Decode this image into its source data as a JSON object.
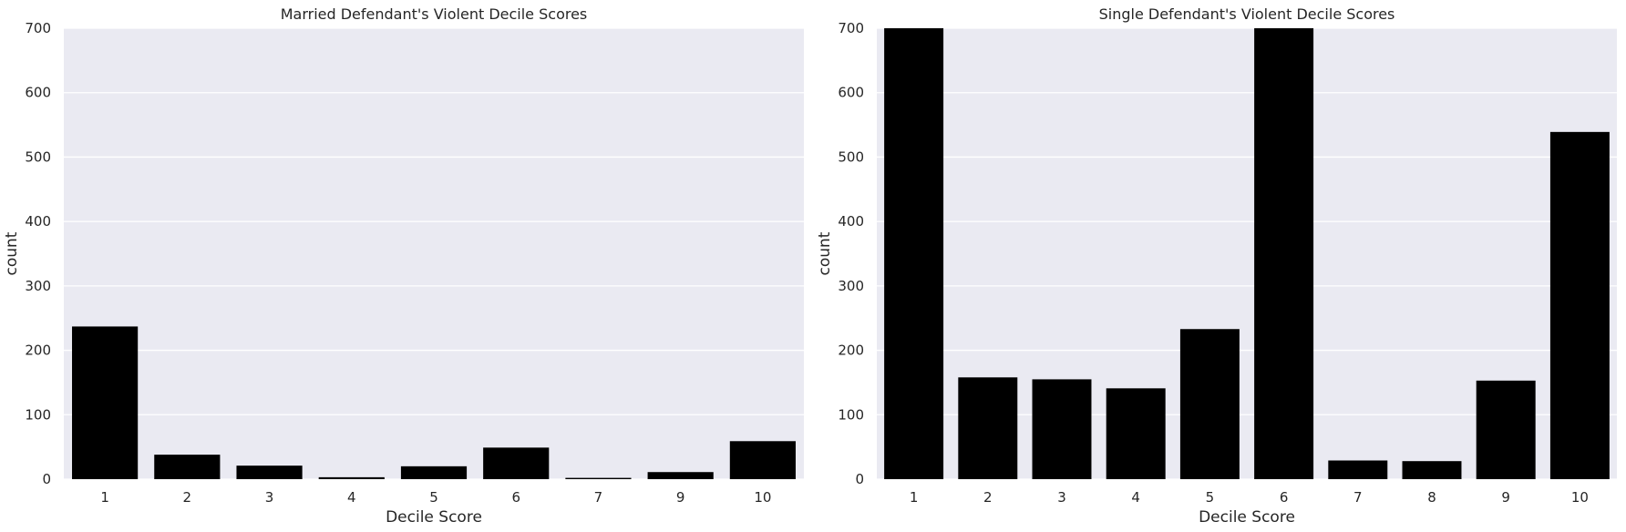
{
  "chart_data": [
    {
      "type": "bar",
      "title": "Married Defendant's Violent Decile Scores",
      "xlabel": "Decile Score",
      "ylabel": "count",
      "categories": [
        "1",
        "2",
        "3",
        "4",
        "5",
        "6",
        "7",
        "9",
        "10"
      ],
      "values": [
        237,
        38,
        21,
        3,
        20,
        49,
        2,
        11,
        59
      ],
      "ylim": [
        0,
        700
      ],
      "yticks": [
        0,
        100,
        200,
        300,
        400,
        500,
        600,
        700
      ],
      "grid": true,
      "bar_color": "#000000",
      "background_color": "#eaeaf2"
    },
    {
      "type": "bar",
      "title": "Single Defendant's Violent Decile Scores",
      "xlabel": "Decile Score",
      "ylabel": "count",
      "categories": [
        "1",
        "2",
        "3",
        "4",
        "5",
        "6",
        "7",
        "8",
        "9",
        "10"
      ],
      "values": [
        700,
        158,
        155,
        141,
        233,
        700,
        29,
        28,
        153,
        539
      ],
      "ylim": [
        0,
        700
      ],
      "yticks": [
        0,
        100,
        200,
        300,
        400,
        500,
        600,
        700
      ],
      "grid": true,
      "bar_color": "#000000",
      "background_color": "#eaeaf2"
    }
  ]
}
